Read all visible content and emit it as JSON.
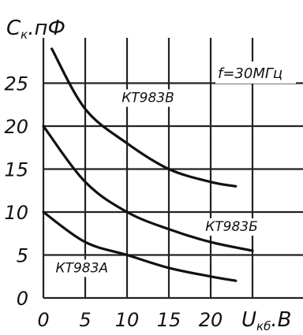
{
  "chart_data": {
    "type": "line",
    "ylabel_main": "C",
    "ylabel_sub": "к",
    "ylabel_unit": ".пФ",
    "xlabel_main": "U",
    "xlabel_sub": "кб",
    "xlabel_unit": ".В",
    "annotation": "f=30МГц",
    "xlim": [
      0,
      25
    ],
    "ylim": [
      0,
      30
    ],
    "grid": true,
    "x_ticks": [
      "0",
      "5",
      "10",
      "15",
      "20"
    ],
    "y_ticks": [
      "0",
      "5",
      "10",
      "15",
      "20",
      "25"
    ],
    "series": [
      {
        "name": "КТ983В",
        "x": [
          1,
          5,
          10,
          15,
          20,
          23
        ],
        "y": [
          29,
          22,
          18,
          15,
          13.5,
          13
        ]
      },
      {
        "name": "КТ983Б",
        "x": [
          0,
          5,
          10,
          15,
          20,
          25
        ],
        "y": [
          20,
          13.5,
          10,
          8,
          6.5,
          5.5
        ]
      },
      {
        "name": "КТ983А",
        "x": [
          0,
          5,
          10,
          15,
          20,
          23
        ],
        "y": [
          10,
          6.5,
          5,
          3.5,
          2.5,
          2
        ]
      }
    ]
  }
}
